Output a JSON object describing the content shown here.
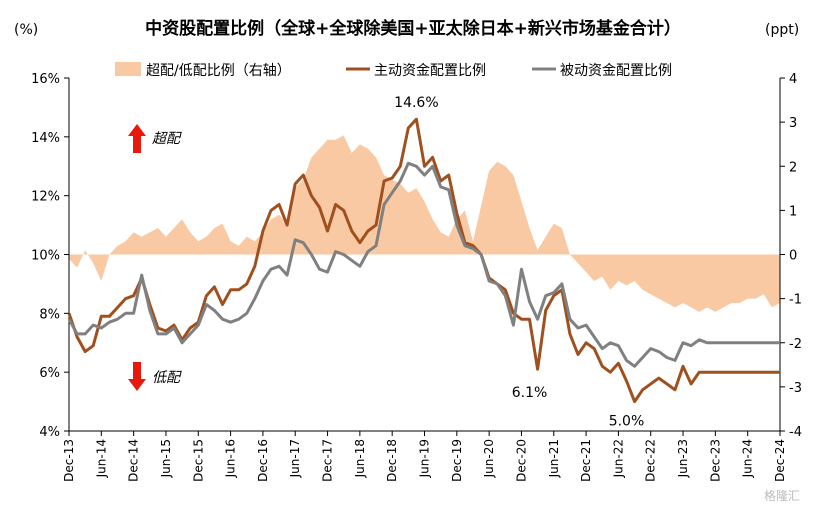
{
  "chart_data": {
    "type": "line",
    "title": "中资股配置比例（全球+全球除美国+亚太除日本+新兴市场基金合计）",
    "y_left_unit": "(%)",
    "y_right_unit": "(ppt)",
    "y_left_ticks": [
      "16%",
      "14%",
      "12%",
      "10%",
      "8%",
      "6%",
      "4%"
    ],
    "y_right_ticks": [
      "4",
      "3",
      "2",
      "1",
      "0",
      "-1",
      "-2",
      "-3",
      "-4"
    ],
    "ylim_left": [
      4,
      16
    ],
    "ylim_right": [
      -4,
      4
    ],
    "x_ticks": [
      "Dec-13",
      "Jun-14",
      "Dec-14",
      "Jun-15",
      "Dec-15",
      "Jun-16",
      "Dec-16",
      "Jun-17",
      "Dec-17",
      "Jun-18",
      "Dec-18",
      "Jun-19",
      "Dec-19",
      "Jun-20",
      "Dec-20",
      "Jun-21",
      "Dec-21",
      "Jun-22",
      "Dec-22",
      "Jun-23",
      "Dec-23",
      "Jun-24",
      "Dec-24"
    ],
    "grid": false,
    "legend_position": "top",
    "series": [
      {
        "name": "超配/低配比例（右轴）",
        "type": "area",
        "axis": "right",
        "color": "#F9C9A4",
        "x": [
          0,
          0.5,
          1,
          1.5,
          2,
          2.5,
          3,
          3.5,
          4,
          4.5,
          5,
          5.5,
          6,
          6.5,
          7,
          7.5,
          8,
          8.5,
          9,
          9.5,
          10,
          10.5,
          11,
          11.5,
          12,
          12.5,
          13,
          13.5,
          14,
          14.5,
          15,
          15.5,
          16,
          16.5,
          17,
          17.5,
          18,
          18.5,
          19,
          19.5,
          20,
          20.5,
          21,
          21.5,
          22,
          22.5,
          23,
          23.5,
          24,
          24.5,
          25,
          25.5,
          26,
          26.5,
          27,
          27.5,
          28,
          28.5,
          29,
          29.5,
          30,
          30.5,
          31,
          31.5,
          32,
          32.5,
          33,
          33.5,
          34,
          34.5,
          35,
          35.5,
          36,
          36.5,
          37,
          37.5,
          38,
          38.5,
          39,
          39.5,
          40,
          40.5,
          41,
          41.5,
          42,
          42.5,
          43,
          43.5,
          44
        ],
        "values": [
          -0.1,
          -0.3,
          0.1,
          -0.2,
          -0.6,
          0.0,
          0.2,
          0.3,
          0.5,
          0.4,
          0.5,
          0.6,
          0.4,
          0.6,
          0.8,
          0.5,
          0.3,
          0.4,
          0.6,
          0.7,
          0.3,
          0.2,
          0.4,
          0.3,
          0.5,
          0.8,
          0.9,
          0.7,
          1.5,
          1.7,
          2.2,
          2.4,
          2.6,
          2.6,
          2.7,
          2.3,
          2.5,
          2.4,
          2.2,
          1.8,
          1.7,
          1.6,
          1.4,
          1.5,
          1.2,
          0.8,
          0.5,
          0.4,
          0.8,
          1.0,
          0.3,
          1.1,
          1.9,
          2.1,
          2.0,
          1.8,
          1.2,
          0.6,
          0.1,
          0.4,
          0.7,
          0.6,
          0.0,
          -0.2,
          -0.4,
          -0.6,
          -0.5,
          -0.8,
          -0.6,
          -0.7,
          -0.6,
          -0.8,
          -0.9,
          -1.0,
          -1.1,
          -1.2,
          -1.1,
          -1.2,
          -1.3,
          -1.2,
          -1.3,
          -1.2,
          -1.1,
          -1.1,
          -1.0,
          -1.0,
          -0.9,
          -1.2,
          -1.1
        ]
      },
      {
        "name": "主动资金配置比例",
        "type": "line",
        "axis": "left",
        "color": "#A0501E",
        "x": [
          0,
          0.5,
          1,
          1.5,
          2,
          2.5,
          3,
          3.5,
          4,
          4.5,
          5,
          5.5,
          6,
          6.5,
          7,
          7.5,
          8,
          8.5,
          9,
          9.5,
          10,
          10.5,
          11,
          11.5,
          12,
          12.5,
          13,
          13.5,
          14,
          14.5,
          15,
          15.5,
          16,
          16.5,
          17,
          17.5,
          18,
          18.5,
          19,
          19.5,
          20,
          20.5,
          21,
          21.5,
          22,
          22.5,
          23,
          23.5,
          24,
          24.5,
          25,
          25.5,
          26,
          26.5,
          27,
          27.5,
          28,
          28.5,
          29,
          29.5,
          30,
          30.5,
          31,
          31.5,
          32,
          32.5,
          33,
          33.5,
          34,
          34.5,
          35,
          35.5,
          36,
          36.5,
          37,
          37.5,
          38,
          38.5,
          39,
          39.5,
          40,
          40.5,
          41,
          41.5,
          42,
          42.5,
          43,
          43.5,
          44
        ],
        "values": [
          8.0,
          7.2,
          6.7,
          6.9,
          7.9,
          7.9,
          8.2,
          8.5,
          8.6,
          9.2,
          8.3,
          7.5,
          7.4,
          7.6,
          7.1,
          7.5,
          7.7,
          8.6,
          8.9,
          8.3,
          8.8,
          8.8,
          9.0,
          9.6,
          10.8,
          11.5,
          11.7,
          11.0,
          12.4,
          12.7,
          12.0,
          11.6,
          10.8,
          11.7,
          11.5,
          10.8,
          10.4,
          10.8,
          11.0,
          12.5,
          12.6,
          13.0,
          14.3,
          14.6,
          13.0,
          13.3,
          12.5,
          12.7,
          11.4,
          10.4,
          10.3,
          10.0,
          9.2,
          9.0,
          8.8,
          8.0,
          7.8,
          7.8,
          6.1,
          8.1,
          8.6,
          8.8,
          7.3,
          6.6,
          7.0,
          6.8,
          6.2,
          6.0,
          6.3,
          5.7,
          5.0,
          5.4,
          5.6,
          5.8,
          5.6,
          5.4,
          6.2,
          5.6,
          6.0,
          6.0,
          6.0,
          6.0,
          6.0,
          6.0,
          6.0,
          6.0,
          6.0,
          6.0,
          6.0
        ]
      },
      {
        "name": "被动资金配置比例",
        "type": "line",
        "axis": "left",
        "color": "#808080",
        "x": [
          0,
          0.5,
          1,
          1.5,
          2,
          2.5,
          3,
          3.5,
          4,
          4.5,
          5,
          5.5,
          6,
          6.5,
          7,
          7.5,
          8,
          8.5,
          9,
          9.5,
          10,
          10.5,
          11,
          11.5,
          12,
          12.5,
          13,
          13.5,
          14,
          14.5,
          15,
          15.5,
          16,
          16.5,
          17,
          17.5,
          18,
          18.5,
          19,
          19.5,
          20,
          20.5,
          21,
          21.5,
          22,
          22.5,
          23,
          23.5,
          24,
          24.5,
          25,
          25.5,
          26,
          26.5,
          27,
          27.5,
          28,
          28.5,
          29,
          29.5,
          30,
          30.5,
          31,
          31.5,
          32,
          32.5,
          33,
          33.5,
          34,
          34.5,
          35,
          35.5,
          36,
          36.5,
          37,
          37.5,
          38,
          38.5,
          39,
          39.5,
          40,
          40.5,
          41,
          41.5,
          42,
          42.5,
          43,
          43.5,
          44
        ],
        "values": [
          7.8,
          7.3,
          7.3,
          7.6,
          7.5,
          7.7,
          7.8,
          8.0,
          8.0,
          9.3,
          8.1,
          7.3,
          7.3,
          7.5,
          7.0,
          7.3,
          7.6,
          8.3,
          8.1,
          7.8,
          7.7,
          7.8,
          8.0,
          8.5,
          9.1,
          9.5,
          9.6,
          9.3,
          10.5,
          10.4,
          10.0,
          9.5,
          9.4,
          10.1,
          10.0,
          9.8,
          9.6,
          10.1,
          10.3,
          11.7,
          12.1,
          12.5,
          13.1,
          13.0,
          12.7,
          13.0,
          12.3,
          12.2,
          11.0,
          10.3,
          10.2,
          10.0,
          9.1,
          9.0,
          8.6,
          7.6,
          9.5,
          8.4,
          7.8,
          8.6,
          8.7,
          9.0,
          7.8,
          7.5,
          7.6,
          7.2,
          6.8,
          7.0,
          6.9,
          6.4,
          6.2,
          6.5,
          6.8,
          6.7,
          6.5,
          6.4,
          7.0,
          6.9,
          7.1,
          7.0,
          7.0,
          7.0,
          7.0,
          7.0,
          7.0,
          7.0,
          7.0,
          7.0,
          7.0
        ]
      }
    ],
    "annotations": [
      {
        "text": "14.6%",
        "x": 21.5,
        "y": 14.6
      },
      {
        "text": "6.1%",
        "x": 28.5,
        "y": 6.1
      },
      {
        "text": "5.0%",
        "x": 34.5,
        "y": 5.0
      }
    ],
    "notes": [
      {
        "text": "超配",
        "arrow": "up",
        "color": "#E8190C"
      },
      {
        "text": "低配",
        "arrow": "down",
        "color": "#E8190C"
      }
    ],
    "watermark": "格隆汇"
  }
}
